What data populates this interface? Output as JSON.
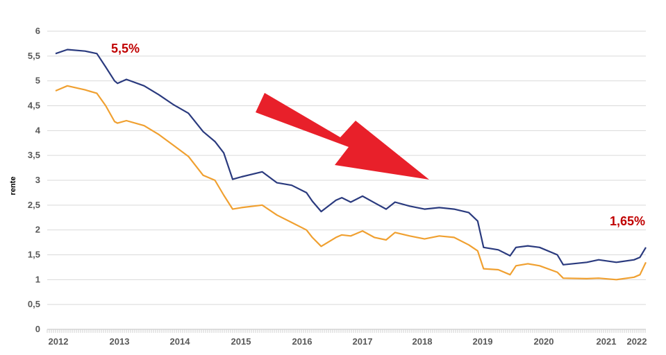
{
  "chart_data": {
    "type": "line",
    "title": "",
    "xlabel": "",
    "ylabel": "rente",
    "ylim": [
      0,
      6
    ],
    "yticks": [
      "0",
      "0,5",
      "1",
      "1,5",
      "2",
      "2,5",
      "3",
      "3,5",
      "4",
      "4,5",
      "5",
      "5,5",
      "6"
    ],
    "xticks": [
      "2012",
      "2013",
      "2014",
      "2015",
      "2016",
      "2017",
      "2018",
      "2019",
      "2020",
      "2021",
      "2022"
    ],
    "grid": true,
    "colors": {
      "series_1": "#2a3a7e",
      "series_2": "#f0a030",
      "arrow": "#e8202a",
      "annotation": "#c00000"
    },
    "series": [
      {
        "x": [
          2012.0,
          2012.2,
          2012.5,
          2012.7,
          2012.85,
          2013.0,
          2013.05,
          2013.2,
          2013.5,
          2013.75,
          2014.0,
          2014.25,
          2014.5,
          2014.7,
          2014.85,
          2015.0,
          2015.15,
          2015.5,
          2015.75,
          2016.0,
          2016.25,
          2016.35,
          2016.5,
          2016.75,
          2016.85,
          2017.0,
          2017.2,
          2017.4,
          2017.6,
          2017.75,
          2018.0,
          2018.25,
          2018.5,
          2018.75,
          2019.0,
          2019.15,
          2019.25,
          2019.5,
          2019.7,
          2019.8,
          2020.0,
          2020.2,
          2020.5,
          2020.6,
          2021.0,
          2021.2,
          2021.5,
          2021.8,
          2021.9,
          2022.0
        ],
        "values": [
          5.55,
          5.63,
          5.6,
          5.55,
          5.28,
          5.0,
          4.95,
          5.03,
          4.9,
          4.72,
          4.52,
          4.35,
          3.98,
          3.78,
          3.55,
          3.02,
          3.07,
          3.17,
          2.95,
          2.9,
          2.75,
          2.58,
          2.37,
          2.6,
          2.65,
          2.56,
          2.68,
          2.55,
          2.42,
          2.56,
          2.48,
          2.42,
          2.45,
          2.42,
          2.35,
          2.18,
          1.65,
          1.6,
          1.48,
          1.65,
          1.68,
          1.65,
          1.5,
          1.3,
          1.35,
          1.4,
          1.35,
          1.4,
          1.45,
          1.65
        ]
      },
      {
        "x": [
          2012.0,
          2012.2,
          2012.5,
          2012.7,
          2012.85,
          2013.0,
          2013.05,
          2013.2,
          2013.5,
          2013.75,
          2014.0,
          2014.25,
          2014.5,
          2014.7,
          2014.85,
          2015.0,
          2015.15,
          2015.5,
          2015.75,
          2016.0,
          2016.25,
          2016.35,
          2016.5,
          2016.75,
          2016.85,
          2017.0,
          2017.2,
          2017.4,
          2017.6,
          2017.75,
          2018.0,
          2018.25,
          2018.5,
          2018.75,
          2019.0,
          2019.15,
          2019.25,
          2019.5,
          2019.7,
          2019.8,
          2020.0,
          2020.2,
          2020.5,
          2020.6,
          2021.0,
          2021.2,
          2021.5,
          2021.8,
          2021.9,
          2022.0
        ],
        "values": [
          4.8,
          4.9,
          4.82,
          4.75,
          4.5,
          4.18,
          4.15,
          4.2,
          4.1,
          3.92,
          3.7,
          3.48,
          3.1,
          3.0,
          2.7,
          2.42,
          2.45,
          2.5,
          2.3,
          2.15,
          2.0,
          1.85,
          1.67,
          1.85,
          1.9,
          1.88,
          1.98,
          1.85,
          1.8,
          1.95,
          1.88,
          1.82,
          1.88,
          1.85,
          1.7,
          1.58,
          1.22,
          1.2,
          1.1,
          1.28,
          1.32,
          1.28,
          1.15,
          1.03,
          1.02,
          1.03,
          1.0,
          1.05,
          1.1,
          1.35
        ]
      }
    ],
    "annotations": [
      {
        "text": "5,5%",
        "x": 2013.0,
        "y": 5.5
      },
      {
        "text": "1,65%",
        "x": 2022.0,
        "y": 1.65
      }
    ]
  }
}
